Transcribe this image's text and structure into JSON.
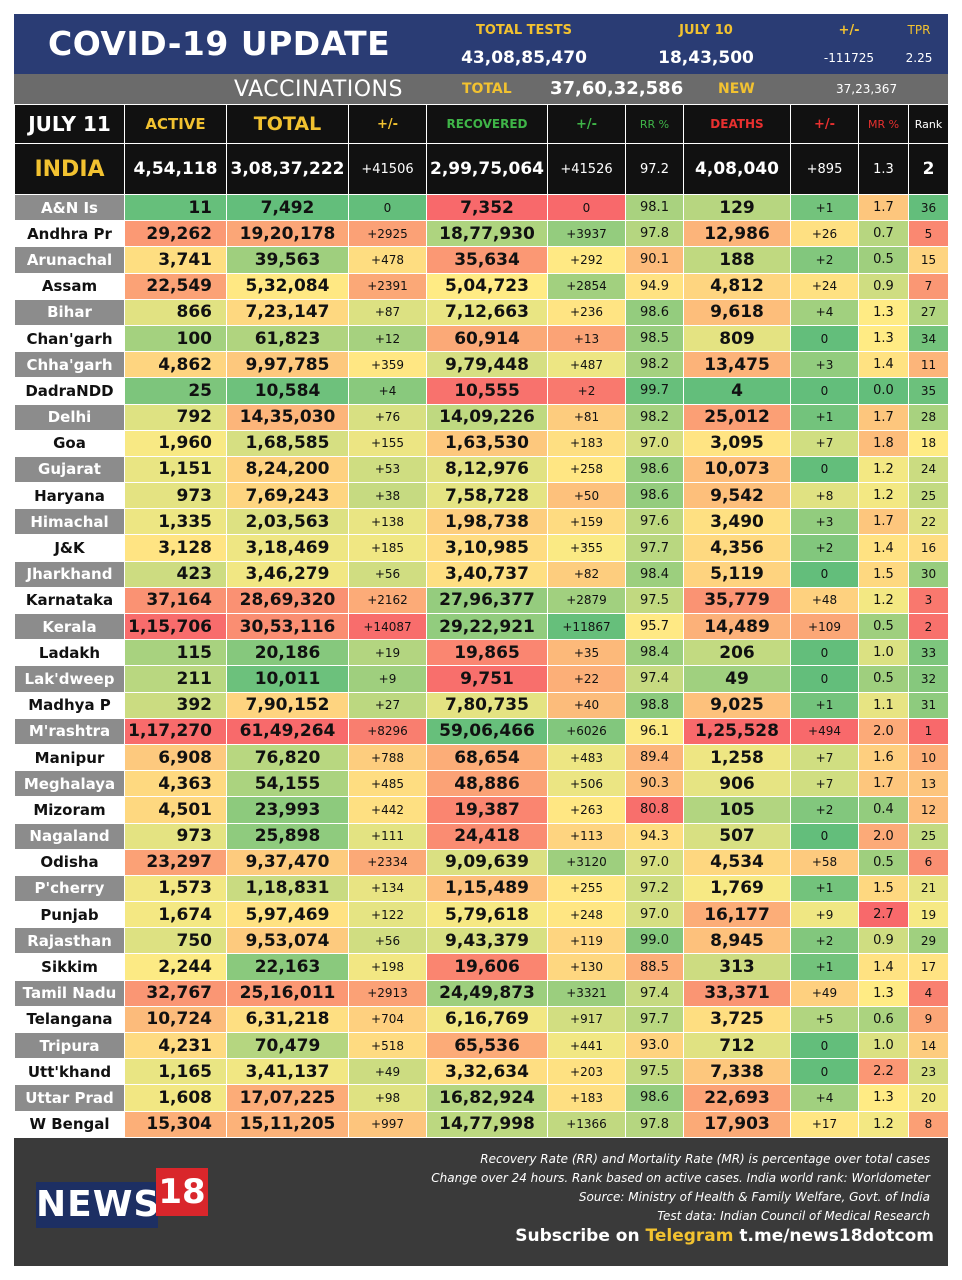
{
  "header": {
    "title": "COVID-19 UPDATE",
    "total_tests_label": "TOTAL TESTS",
    "total_tests_value": "43,08,85,470",
    "date_label": "JULY 10",
    "date_value": "18,43,500",
    "change_label": "+/-",
    "change_value": "-111725",
    "tpr_label": "TPR",
    "tpr_value": "2.25"
  },
  "vaccinations": {
    "title": "VACCINATIONS",
    "total_label": "TOTAL",
    "total_value": "37,60,32,586",
    "new_label": "NEW",
    "new_value": "37,23,367"
  },
  "table": {
    "columns": [
      "JULY 11",
      "ACTIVE",
      "TOTAL",
      "+/-",
      "RECOVERED",
      "+/-",
      "RR %",
      "DEATHS",
      "+/-",
      "MR %",
      "Rank"
    ],
    "column_colors": [
      "#ffffff",
      "#f2c230",
      "#f2c230",
      "#f2c230",
      "#3fb548",
      "#3fb548",
      "#3fb548",
      "#e8302f",
      "#e8302f",
      "#e8302f",
      "#ffffff"
    ],
    "india": {
      "name": "INDIA",
      "active": "4,54,118",
      "total": "3,08,37,222",
      "total_change": "+41506",
      "recovered": "2,99,75,064",
      "recovered_change": "+41526",
      "rr": "97.2",
      "deaths": "4,08,040",
      "deaths_change": "+895",
      "mr": "1.3",
      "rank": "2"
    },
    "rows": [
      {
        "name": "A&N Is",
        "active": "11",
        "total": "7,492",
        "tc": "0",
        "rec": "7,352",
        "rc": "0",
        "rr": "98.1",
        "deaths": "129",
        "dc": "+1",
        "mr": "1.7",
        "rank": "36"
      },
      {
        "name": "Andhra Pr",
        "active": "29,262",
        "total": "19,20,178",
        "tc": "+2925",
        "rec": "18,77,930",
        "rc": "+3937",
        "rr": "97.8",
        "deaths": "12,986",
        "dc": "+26",
        "mr": "0.7",
        "rank": "5"
      },
      {
        "name": "Arunachal",
        "active": "3,741",
        "total": "39,563",
        "tc": "+478",
        "rec": "35,634",
        "rc": "+292",
        "rr": "90.1",
        "deaths": "188",
        "dc": "+2",
        "mr": "0.5",
        "rank": "15"
      },
      {
        "name": "Assam",
        "active": "22,549",
        "total": "5,32,084",
        "tc": "+2391",
        "rec": "5,04,723",
        "rc": "+2854",
        "rr": "94.9",
        "deaths": "4,812",
        "dc": "+24",
        "mr": "0.9",
        "rank": "7"
      },
      {
        "name": "Bihar",
        "active": "866",
        "total": "7,23,147",
        "tc": "+87",
        "rec": "7,12,663",
        "rc": "+236",
        "rr": "98.6",
        "deaths": "9,618",
        "dc": "+4",
        "mr": "1.3",
        "rank": "27"
      },
      {
        "name": "Chan'garh",
        "active": "100",
        "total": "61,823",
        "tc": "+12",
        "rec": "60,914",
        "rc": "+13",
        "rr": "98.5",
        "deaths": "809",
        "dc": "0",
        "mr": "1.3",
        "rank": "34"
      },
      {
        "name": "Chha'garh",
        "active": "4,862",
        "total": "9,97,785",
        "tc": "+359",
        "rec": "9,79,448",
        "rc": "+487",
        "rr": "98.2",
        "deaths": "13,475",
        "dc": "+3",
        "mr": "1.4",
        "rank": "11"
      },
      {
        "name": "DadraNDD",
        "active": "25",
        "total": "10,584",
        "tc": "+4",
        "rec": "10,555",
        "rc": "+2",
        "rr": "99.7",
        "deaths": "4",
        "dc": "0",
        "mr": "0.0",
        "rank": "35"
      },
      {
        "name": "Delhi",
        "active": "792",
        "total": "14,35,030",
        "tc": "+76",
        "rec": "14,09,226",
        "rc": "+81",
        "rr": "98.2",
        "deaths": "25,012",
        "dc": "+1",
        "mr": "1.7",
        "rank": "28"
      },
      {
        "name": "Goa",
        "active": "1,960",
        "total": "1,68,585",
        "tc": "+155",
        "rec": "1,63,530",
        "rc": "+183",
        "rr": "97.0",
        "deaths": "3,095",
        "dc": "+7",
        "mr": "1.8",
        "rank": "18"
      },
      {
        "name": "Gujarat",
        "active": "1,151",
        "total": "8,24,200",
        "tc": "+53",
        "rec": "8,12,976",
        "rc": "+258",
        "rr": "98.6",
        "deaths": "10,073",
        "dc": "0",
        "mr": "1.2",
        "rank": "24"
      },
      {
        "name": "Haryana",
        "active": "973",
        "total": "7,69,243",
        "tc": "+38",
        "rec": "7,58,728",
        "rc": "+50",
        "rr": "98.6",
        "deaths": "9,542",
        "dc": "+8",
        "mr": "1.2",
        "rank": "25"
      },
      {
        "name": "Himachal",
        "active": "1,335",
        "total": "2,03,563",
        "tc": "+138",
        "rec": "1,98,738",
        "rc": "+159",
        "rr": "97.6",
        "deaths": "3,490",
        "dc": "+3",
        "mr": "1.7",
        "rank": "22"
      },
      {
        "name": "J&K",
        "active": "3,128",
        "total": "3,18,469",
        "tc": "+185",
        "rec": "3,10,985",
        "rc": "+355",
        "rr": "97.7",
        "deaths": "4,356",
        "dc": "+2",
        "mr": "1.4",
        "rank": "16"
      },
      {
        "name": "Jharkhand",
        "active": "423",
        "total": "3,46,279",
        "tc": "+56",
        "rec": "3,40,737",
        "rc": "+82",
        "rr": "98.4",
        "deaths": "5,119",
        "dc": "0",
        "mr": "1.5",
        "rank": "30"
      },
      {
        "name": "Karnataka",
        "active": "37,164",
        "total": "28,69,320",
        "tc": "+2162",
        "rec": "27,96,377",
        "rc": "+2879",
        "rr": "97.5",
        "deaths": "35,779",
        "dc": "+48",
        "mr": "1.2",
        "rank": "3"
      },
      {
        "name": "Kerala",
        "active": "1,15,706",
        "total": "30,53,116",
        "tc": "+14087",
        "rec": "29,22,921",
        "rc": "+11867",
        "rr": "95.7",
        "deaths": "14,489",
        "dc": "+109",
        "mr": "0.5",
        "rank": "2"
      },
      {
        "name": "Ladakh",
        "active": "115",
        "total": "20,186",
        "tc": "+19",
        "rec": "19,865",
        "rc": "+35",
        "rr": "98.4",
        "deaths": "206",
        "dc": "0",
        "mr": "1.0",
        "rank": "33"
      },
      {
        "name": "Lak'dweep",
        "active": "211",
        "total": "10,011",
        "tc": "+9",
        "rec": "9,751",
        "rc": "+22",
        "rr": "97.4",
        "deaths": "49",
        "dc": "0",
        "mr": "0.5",
        "rank": "32"
      },
      {
        "name": "Madhya P",
        "active": "392",
        "total": "7,90,152",
        "tc": "+27",
        "rec": "7,80,735",
        "rc": "+40",
        "rr": "98.8",
        "deaths": "9,025",
        "dc": "+1",
        "mr": "1.1",
        "rank": "31"
      },
      {
        "name": "M'rashtra",
        "active": "1,17,270",
        "total": "61,49,264",
        "tc": "+8296",
        "rec": "59,06,466",
        "rc": "+6026",
        "rr": "96.1",
        "deaths": "1,25,528",
        "dc": "+494",
        "mr": "2.0",
        "rank": "1"
      },
      {
        "name": "Manipur",
        "active": "6,908",
        "total": "76,820",
        "tc": "+788",
        "rec": "68,654",
        "rc": "+483",
        "rr": "89.4",
        "deaths": "1,258",
        "dc": "+7",
        "mr": "1.6",
        "rank": "10"
      },
      {
        "name": "Meghalaya",
        "active": "4,363",
        "total": "54,155",
        "tc": "+485",
        "rec": "48,886",
        "rc": "+506",
        "rr": "90.3",
        "deaths": "906",
        "dc": "+7",
        "mr": "1.7",
        "rank": "13"
      },
      {
        "name": "Mizoram",
        "active": "4,501",
        "total": "23,993",
        "tc": "+442",
        "rec": "19,387",
        "rc": "+263",
        "rr": "80.8",
        "deaths": "105",
        "dc": "+2",
        "mr": "0.4",
        "rank": "12"
      },
      {
        "name": "Nagaland",
        "active": "973",
        "total": "25,898",
        "tc": "+111",
        "rec": "24,418",
        "rc": "+113",
        "rr": "94.3",
        "deaths": "507",
        "dc": "0",
        "mr": "2.0",
        "rank": "25"
      },
      {
        "name": "Odisha",
        "active": "23,297",
        "total": "9,37,470",
        "tc": "+2334",
        "rec": "9,09,639",
        "rc": "+3120",
        "rr": "97.0",
        "deaths": "4,534",
        "dc": "+58",
        "mr": "0.5",
        "rank": "6"
      },
      {
        "name": "P'cherry",
        "active": "1,573",
        "total": "1,18,831",
        "tc": "+134",
        "rec": "1,15,489",
        "rc": "+255",
        "rr": "97.2",
        "deaths": "1,769",
        "dc": "+1",
        "mr": "1.5",
        "rank": "21"
      },
      {
        "name": "Punjab",
        "active": "1,674",
        "total": "5,97,469",
        "tc": "+122",
        "rec": "5,79,618",
        "rc": "+248",
        "rr": "97.0",
        "deaths": "16,177",
        "dc": "+9",
        "mr": "2.7",
        "rank": "19"
      },
      {
        "name": "Rajasthan",
        "active": "750",
        "total": "9,53,074",
        "tc": "+56",
        "rec": "9,43,379",
        "rc": "+119",
        "rr": "99.0",
        "deaths": "8,945",
        "dc": "+2",
        "mr": "0.9",
        "rank": "29"
      },
      {
        "name": "Sikkim",
        "active": "2,244",
        "total": "22,163",
        "tc": "+198",
        "rec": "19,606",
        "rc": "+130",
        "rr": "88.5",
        "deaths": "313",
        "dc": "+1",
        "mr": "1.4",
        "rank": "17"
      },
      {
        "name": "Tamil Nadu",
        "active": "32,767",
        "total": "25,16,011",
        "tc": "+2913",
        "rec": "24,49,873",
        "rc": "+3321",
        "rr": "97.4",
        "deaths": "33,371",
        "dc": "+49",
        "mr": "1.3",
        "rank": "4"
      },
      {
        "name": "Telangana",
        "active": "10,724",
        "total": "6,31,218",
        "tc": "+704",
        "rec": "6,16,769",
        "rc": "+917",
        "rr": "97.7",
        "deaths": "3,725",
        "dc": "+5",
        "mr": "0.6",
        "rank": "9"
      },
      {
        "name": "Tripura",
        "active": "4,231",
        "total": "70,479",
        "tc": "+518",
        "rec": "65,536",
        "rc": "+441",
        "rr": "93.0",
        "deaths": "712",
        "dc": "0",
        "mr": "1.0",
        "rank": "14"
      },
      {
        "name": "Utt'khand",
        "active": "1,165",
        "total": "3,41,137",
        "tc": "+49",
        "rec": "3,32,634",
        "rc": "+203",
        "rr": "97.5",
        "deaths": "7,338",
        "dc": "0",
        "mr": "2.2",
        "rank": "23"
      },
      {
        "name": "Uttar Prad",
        "active": "1,608",
        "total": "17,07,225",
        "tc": "+98",
        "rec": "16,82,924",
        "rc": "+183",
        "rr": "98.6",
        "deaths": "22,693",
        "dc": "+4",
        "mr": "1.3",
        "rank": "20"
      },
      {
        "name": "W Bengal",
        "active": "15,304",
        "total": "15,11,205",
        "tc": "+997",
        "rec": "14,77,998",
        "rc": "+1366",
        "rr": "97.8",
        "deaths": "17,903",
        "dc": "+17",
        "mr": "1.2",
        "rank": "8"
      }
    ]
  },
  "footer": {
    "logo_text": "NEWS",
    "logo_number": "18",
    "notes": [
      "Recovery Rate (RR) and Mortality Rate (MR) is percentage over total cases",
      "Change over 24 hours. Rank based on active cases. India world rank: Worldometer",
      "Source: Ministry of Health & Family Welfare, Govt. of India",
      "Test data: Indian Council of Medical Research"
    ],
    "subscribe_prefix": "Subscribe on",
    "subscribe_channel": "Telegram",
    "subscribe_link": "t.me/news18dotcom"
  },
  "colors": {
    "header_bg": "#2a3c74",
    "accent_yellow": "#f2c230",
    "green_strong": "#63be7b",
    "yellow_soft": "#ffeb84",
    "red_strong": "#f8696b"
  }
}
